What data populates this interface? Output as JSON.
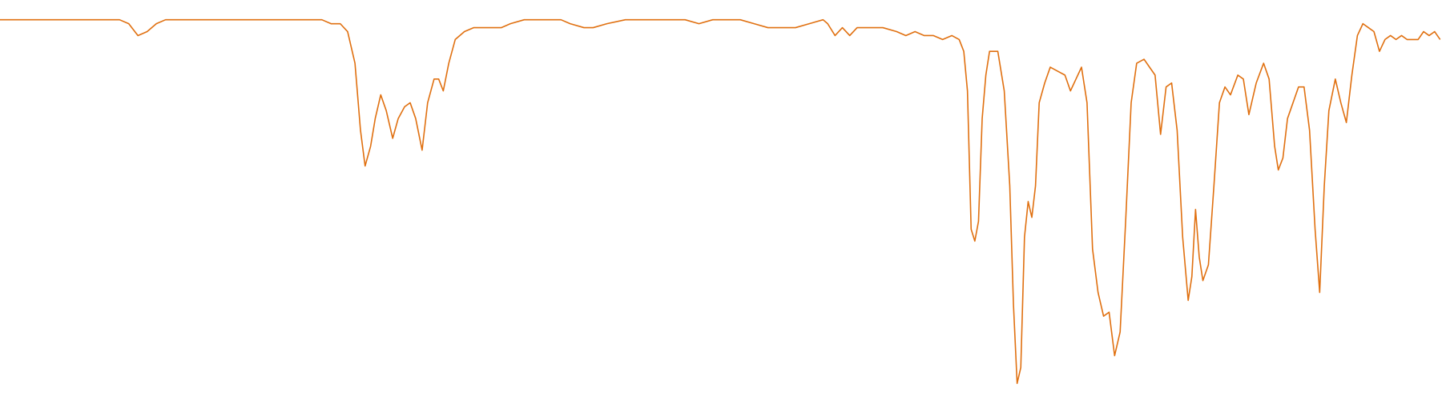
{
  "chart_data": {
    "type": "line",
    "color": "#e07010",
    "xlim": [
      0,
      1568
    ],
    "ylim": [
      0,
      100
    ],
    "x": [
      0,
      10,
      20,
      30,
      40,
      50,
      60,
      70,
      80,
      90,
      100,
      110,
      120,
      130,
      140,
      150,
      160,
      170,
      180,
      190,
      200,
      210,
      220,
      230,
      240,
      250,
      260,
      270,
      280,
      290,
      300,
      310,
      320,
      330,
      340,
      350,
      360,
      370,
      378,
      386,
      392,
      397,
      403,
      408,
      414,
      420,
      427,
      433,
      440,
      446,
      452,
      459,
      465,
      472,
      477,
      482,
      488,
      495,
      505,
      515,
      525,
      535,
      545,
      555,
      570,
      585,
      600,
      610,
      620,
      635,
      645,
      660,
      680,
      700,
      715,
      730,
      745,
      760,
      775,
      790,
      805,
      820,
      835,
      850,
      865,
      880,
      895,
      900,
      908,
      916,
      924,
      932,
      945,
      960,
      975,
      985,
      995,
      1005,
      1015,
      1025,
      1035,
      1043,
      1048,
      1052,
      1056,
      1060,
      1064,
      1068,
      1072,
      1076,
      1080,
      1085,
      1092,
      1098,
      1102,
      1106,
      1110,
      1114,
      1118,
      1122,
      1126,
      1130,
      1136,
      1142,
      1150,
      1158,
      1164,
      1170,
      1176,
      1182,
      1188,
      1194,
      1200,
      1206,
      1212,
      1218,
      1224,
      1230,
      1236,
      1244,
      1250,
      1256,
      1262,
      1268,
      1274,
      1280,
      1286,
      1292,
      1296,
      1300,
      1304,
      1308,
      1314,
      1320,
      1326,
      1332,
      1338,
      1346,
      1352,
      1358,
      1366,
      1374,
      1380,
      1386,
      1390,
      1395,
      1400,
      1406,
      1412,
      1418,
      1424,
      1430,
      1435,
      1440,
      1445,
      1452,
      1458,
      1464,
      1470,
      1476,
      1482,
      1488,
      1494,
      1500,
      1506,
      1512,
      1518,
      1524,
      1530,
      1536,
      1542,
      1548,
      1554,
      1560,
      1566
    ],
    "values": [
      95,
      95,
      95,
      95,
      95,
      95,
      95,
      95,
      95,
      95,
      95,
      95,
      95,
      95,
      94,
      91,
      92,
      94,
      95,
      95,
      95,
      95,
      95,
      95,
      95,
      95,
      95,
      95,
      95,
      95,
      95,
      95,
      95,
      95,
      95,
      95,
      94,
      94,
      92,
      84,
      67,
      58,
      63,
      70,
      76,
      72,
      65,
      70,
      73,
      74,
      70,
      62,
      74,
      80,
      80,
      77,
      84,
      90,
      92,
      93,
      93,
      93,
      93,
      94,
      95,
      95,
      95,
      95,
      94,
      93,
      93,
      94,
      95,
      95,
      95,
      95,
      95,
      94,
      95,
      95,
      95,
      94,
      93,
      93,
      93,
      94,
      95,
      94,
      91,
      93,
      91,
      93,
      93,
      93,
      92,
      91,
      92,
      91,
      91,
      90,
      91,
      90,
      87,
      77,
      42,
      39,
      44,
      70,
      81,
      87,
      87,
      87,
      77,
      53,
      23,
      3,
      7,
      40,
      49,
      45,
      53,
      74,
      79,
      83,
      82,
      81,
      77,
      80,
      83,
      74,
      37,
      26,
      20,
      21,
      10,
      16,
      44,
      74,
      84,
      85,
      83,
      81,
      66,
      78,
      79,
      67,
      40,
      24,
      30,
      47,
      35,
      29,
      33,
      53,
      74,
      78,
      76,
      81,
      80,
      71,
      79,
      84,
      80,
      63,
      57,
      60,
      70,
      74,
      78,
      78,
      67,
      42,
      26,
      53,
      72,
      80,
      74,
      69,
      81,
      91,
      94,
      93,
      92,
      87,
      90,
      91,
      90,
      91,
      90,
      90,
      90,
      92,
      91,
      92,
      90
    ]
  }
}
